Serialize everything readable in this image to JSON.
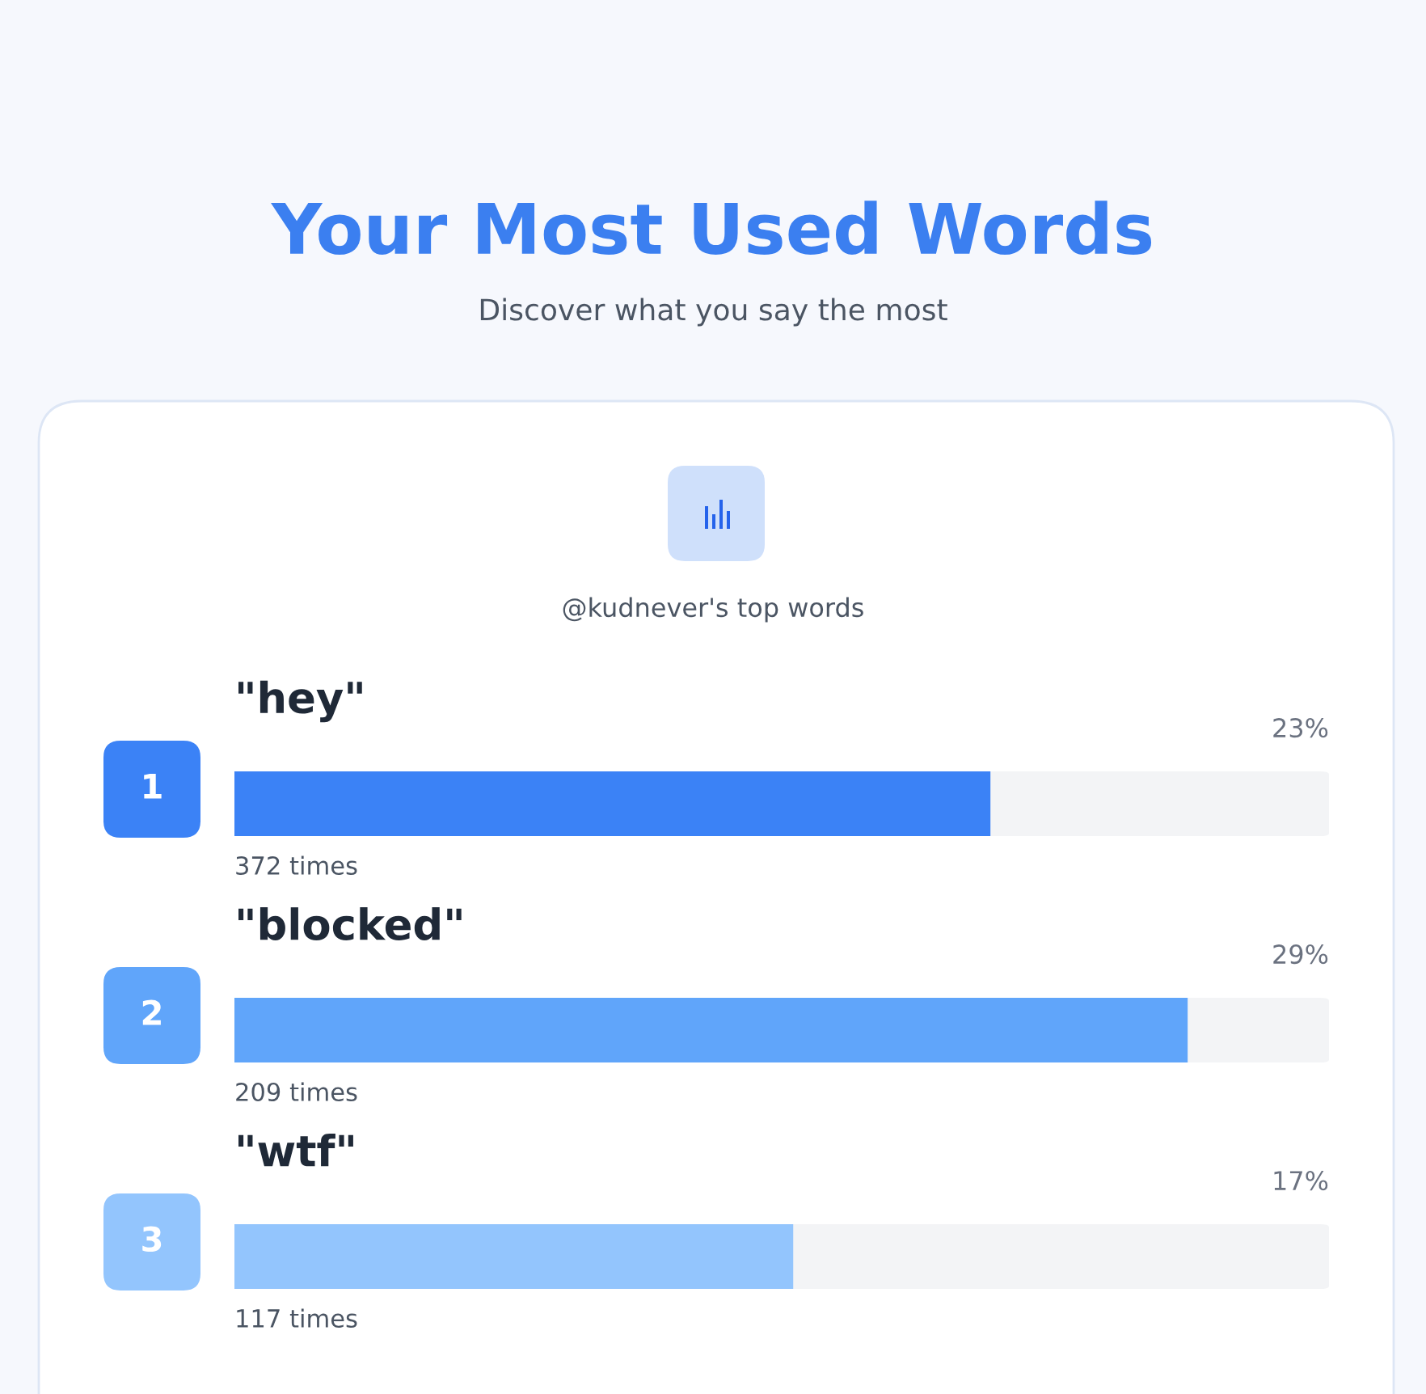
{
  "chart_data": {
    "type": "bar",
    "orientation": "horizontal",
    "title": "Your Most Used Words",
    "subtitle": "Discover what you say the most",
    "categories": [
      "\"hey\"",
      "\"blocked\"",
      "\"wtf\""
    ],
    "values": [
      23,
      29,
      17
    ],
    "colors": [
      "#3b82f6",
      "#60a5fa",
      "#93c5fd"
    ],
    "value_labels": [
      "23%",
      "29%",
      "17%"
    ],
    "xlim": [
      0,
      33.3
    ],
    "annotations": [
      "@kudnever's top words",
      "372 times",
      "209 times",
      "117 times",
      "1",
      "2",
      "3"
    ]
  }
}
